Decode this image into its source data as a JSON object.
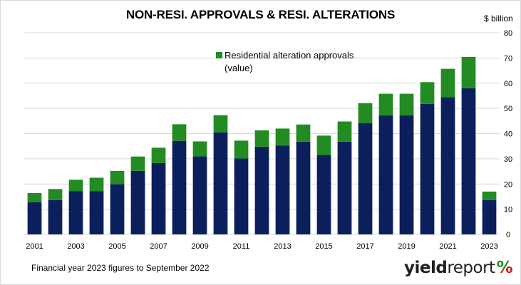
{
  "chart_data": {
    "type": "bar",
    "stacked": true,
    "title": "NON-RESI. APPROVALS & RESI. ALTERATIONS",
    "y_unit_label": "$ billion",
    "ylim": [
      0,
      80
    ],
    "yticks": [
      0,
      10,
      20,
      30,
      40,
      50,
      60,
      70,
      80
    ],
    "y_axis_position": "right",
    "grid": true,
    "categories": [
      "2001",
      "2002",
      "2003",
      "2004",
      "2005",
      "2006",
      "2007",
      "2008",
      "2009",
      "2010",
      "2011",
      "2012",
      "2013",
      "2014",
      "2015",
      "2016",
      "2017",
      "2018",
      "2019",
      "2020",
      "2021",
      "2022",
      "2023"
    ],
    "x_tick_labels": [
      "2001",
      "2003",
      "2005",
      "2007",
      "2009",
      "2011",
      "2013",
      "2015",
      "2017",
      "2019",
      "2021",
      "2023"
    ],
    "series": [
      {
        "values": [
          12.8,
          13.6,
          17.2,
          17.2,
          19.9,
          25.2,
          28.3,
          37.1,
          31.0,
          40.5,
          30.1,
          34.8,
          35.2,
          36.8,
          31.5,
          36.8,
          44.1,
          47.2,
          47.2,
          51.8,
          54.4,
          58.0,
          13.6
        ],
        "color": "#0b1f5c"
      },
      {
        "name": "Residential alteration approvals (value)",
        "values": [
          3.6,
          4.4,
          4.5,
          5.3,
          5.3,
          5.7,
          6.1,
          6.6,
          5.9,
          6.8,
          7.1,
          6.5,
          6.8,
          6.8,
          7.7,
          8.0,
          8.0,
          8.6,
          8.6,
          8.6,
          11.3,
          12.4,
          3.4
        ],
        "color": "#228b22"
      }
    ],
    "legend": {
      "label_line1": "Residential alteration approvals",
      "label_line2": "(value)",
      "placement": "top-center"
    },
    "footnote": "Financial year 2023 figures to September  2022"
  },
  "brand": {
    "part1": "yield",
    "part2": "report",
    "mark": "%",
    "mark_colors": [
      "#228b22",
      "#cc1f1f"
    ]
  },
  "colors": {
    "grid": "#d9d9d9",
    "axis_text": "#000000"
  }
}
